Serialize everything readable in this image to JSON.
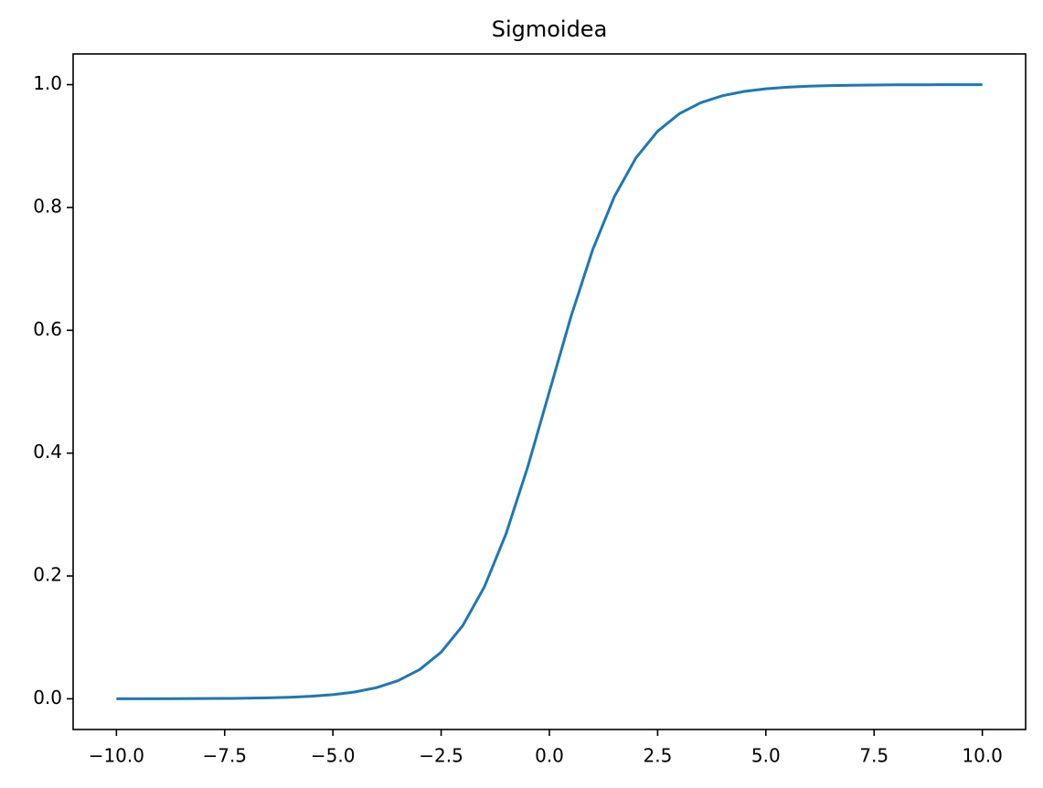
{
  "chart_data": {
    "type": "line",
    "title": "Sigmoidea",
    "x": [
      -10,
      -9.5,
      -9,
      -8.5,
      -8,
      -7.5,
      -7,
      -6.5,
      -6,
      -5.5,
      -5,
      -4.5,
      -4,
      -3.5,
      -3,
      -2.5,
      -2,
      -1.5,
      -1,
      -0.5,
      0,
      0.5,
      1,
      1.5,
      2,
      2.5,
      3,
      3.5,
      4,
      4.5,
      5,
      5.5,
      6,
      6.5,
      7,
      7.5,
      8,
      8.5,
      9,
      9.5,
      10
    ],
    "values": [
      4.54e-05,
      7.49e-05,
      0.0001234,
      0.000203,
      0.000335,
      0.000553,
      0.000911,
      0.0015,
      0.00247,
      0.00407,
      0.00669,
      0.01099,
      0.01799,
      0.02931,
      0.04743,
      0.07586,
      0.1192,
      0.1824,
      0.2689,
      0.3775,
      0.5,
      0.6225,
      0.7311,
      0.8176,
      0.8808,
      0.9241,
      0.9526,
      0.9707,
      0.982,
      0.989,
      0.9933,
      0.9959,
      0.9975,
      0.9985,
      0.9991,
      0.9994,
      0.9997,
      0.9998,
      0.9999,
      0.9999,
      1.0
    ],
    "color": "#1f77b4",
    "xlim": [
      -11,
      11
    ],
    "xticks": [
      {
        "value": -10,
        "label": "−10.0"
      },
      {
        "value": -7.5,
        "label": "−7.5"
      },
      {
        "value": -5,
        "label": "−5.0"
      },
      {
        "value": -2.5,
        "label": "−2.5"
      },
      {
        "value": 0,
        "label": "0.0"
      },
      2.5,
      {
        "value": 5,
        "label": "5.0"
      },
      7.5,
      {
        "value": 10,
        "label": "10.0"
      }
    ],
    "ylim": [
      -0.05,
      1.05
    ],
    "yticks": [
      {
        "value": 0,
        "label": "0.0"
      },
      0.2,
      0.4,
      0.6,
      0.8,
      {
        "value": 1,
        "label": "1.0"
      }
    ],
    "grid": false
  }
}
